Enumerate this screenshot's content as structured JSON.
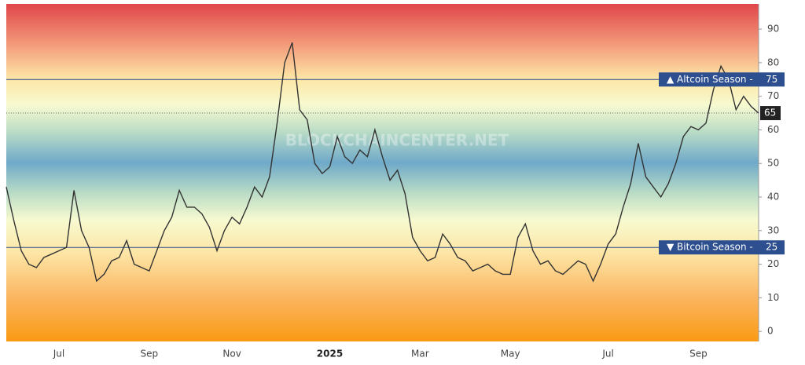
{
  "chart_data": {
    "type": "line",
    "watermark": "BLOCKCHAINCENTER.NET",
    "categories": [
      null,
      null,
      null,
      null,
      null,
      null,
      null,
      "Jul",
      null,
      null,
      null,
      null,
      null,
      null,
      null,
      null,
      null,
      null,
      null,
      "Sep",
      null,
      null,
      null,
      null,
      null,
      null,
      null,
      null,
      null,
      null,
      "Nov",
      null,
      null,
      null,
      null,
      null,
      null,
      null,
      null,
      null,
      null,
      null,
      null,
      "2025",
      null,
      null,
      null,
      null,
      null,
      null,
      null,
      null,
      null,
      null,
      null,
      "Mar",
      null,
      null,
      null,
      null,
      null,
      null,
      null,
      null,
      null,
      null,
      null,
      "May",
      null,
      null,
      null,
      null,
      null,
      null,
      null,
      null,
      null,
      null,
      null,
      null,
      "Jul",
      null,
      null,
      null,
      null,
      null,
      null,
      null,
      null,
      null,
      null,
      null,
      "Sep",
      null,
      null,
      null,
      null,
      null,
      null,
      null,
      null
    ],
    "values": [
      43,
      33,
      24,
      20,
      19,
      22,
      23,
      24,
      25,
      42,
      30,
      25,
      15,
      17,
      21,
      22,
      27,
      20,
      19,
      18,
      24,
      30,
      34,
      42,
      37,
      37,
      35,
      31,
      24,
      30,
      34,
      32,
      37,
      43,
      40,
      46,
      62,
      80,
      86,
      66,
      63,
      50,
      47,
      49,
      58,
      52,
      50,
      54,
      52,
      60,
      52,
      45,
      48,
      41,
      28,
      24,
      21,
      22,
      29,
      26,
      22,
      21,
      18,
      19,
      20,
      18,
      17,
      17,
      28,
      32,
      24,
      20,
      21,
      18,
      17,
      19,
      21,
      20,
      15,
      20,
      26,
      29,
      37,
      44,
      56,
      46,
      43,
      40,
      44,
      50,
      58,
      61,
      60,
      62,
      72,
      79,
      75,
      66,
      70,
      67,
      65
    ],
    "color": "#333333",
    "ylim": [
      -3,
      97.5
    ],
    "yticks": [
      0,
      10,
      20,
      30,
      40,
      50,
      60,
      70,
      80,
      90
    ],
    "thresholds": [
      {
        "label": "▲ Altcoin Season -",
        "value": 75,
        "color": "#2e4f8f"
      },
      {
        "label": "▼ Bitcoin Season -",
        "value": 25,
        "color": "#2e4f8f"
      }
    ]
  }
}
